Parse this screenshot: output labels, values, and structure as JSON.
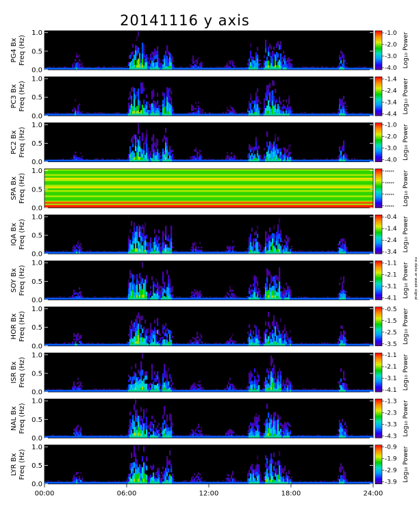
{
  "page": {
    "title": "20141116 y axis",
    "side_note": "no data or weak signal"
  },
  "chart_data": {
    "type": "heatmap",
    "title": "20141116 y axis",
    "x_tick_labels": [
      "00:00",
      "06:00",
      "12:00",
      "18:00",
      "24:00"
    ],
    "x_ticks_hours": [
      0,
      6,
      12,
      18,
      24
    ],
    "xlim_hours": [
      0,
      24
    ],
    "ylim_hz": [
      0,
      1.05
    ],
    "y_tick_labels": [
      "0.0",
      "0.5",
      "1.0"
    ],
    "y_ticks_hz": [
      0,
      0.5,
      1.0
    ],
    "colorbar_label": "Log₁₀ Power",
    "panels": [
      {
        "station": "PG4",
        "component": "Bx",
        "freq_label": "Freq (Hz)",
        "colorbar_ticks": [
          "-1.0",
          "-2.0",
          "-3.0",
          "-4.0"
        ],
        "clim": [
          -4.0,
          -1.0
        ],
        "status": "data"
      },
      {
        "station": "PC3",
        "component": "Bx",
        "freq_label": "Freq (Hz)",
        "colorbar_ticks": [
          "-1.4",
          "-2.4",
          "-3.4",
          "-4.4"
        ],
        "clim": [
          -4.4,
          -1.4
        ],
        "status": "data"
      },
      {
        "station": "PC2",
        "component": "Bx",
        "freq_label": "Freq (Hz)",
        "colorbar_ticks": [
          "-1.0",
          "-2.0",
          "-3.0",
          "-4.0"
        ],
        "clim": [
          -4.0,
          -1.0
        ],
        "status": "data"
      },
      {
        "station": "SPA",
        "component": "Bx",
        "freq_label": "Freq (Hz)",
        "colorbar_ticks": [
          "*****",
          "*****",
          "*****",
          "*****"
        ],
        "clim": null,
        "status": "no-data"
      },
      {
        "station": "IQA",
        "component": "Bx",
        "freq_label": "Freq (Hz)",
        "colorbar_ticks": [
          "-0.4",
          "-1.4",
          "-2.4",
          "-3.4"
        ],
        "clim": [
          -3.4,
          -0.4
        ],
        "status": "data"
      },
      {
        "station": "SOY",
        "component": "Bx",
        "freq_label": "Freq (Hz)",
        "colorbar_ticks": [
          "-1.1",
          "-2.1",
          "-3.1",
          "-4.1"
        ],
        "clim": [
          -4.1,
          -1.1
        ],
        "status": "data"
      },
      {
        "station": "HOR",
        "component": "Bx",
        "freq_label": "Freq (Hz)",
        "colorbar_ticks": [
          "-0.5",
          "-1.5",
          "-2.5",
          "-3.5"
        ],
        "clim": [
          -3.5,
          -0.5
        ],
        "status": "data"
      },
      {
        "station": "ISR",
        "component": "Bx",
        "freq_label": "Freq (Hz)",
        "colorbar_ticks": [
          "-1.1",
          "-2.1",
          "-3.1",
          "-4.1"
        ],
        "clim": [
          -4.1,
          -1.1
        ],
        "status": "data"
      },
      {
        "station": "NAL",
        "component": "Bx",
        "freq_label": "Freq (Hz)",
        "colorbar_ticks": [
          "-1.3",
          "-2.3",
          "-3.3",
          "-4.3"
        ],
        "clim": [
          -4.3,
          -1.3
        ],
        "status": "data"
      },
      {
        "station": "LYR",
        "component": "Bx",
        "freq_label": "Freq (Hz)",
        "colorbar_ticks": [
          "-0.9",
          "-1.9",
          "-2.9",
          "-3.9"
        ],
        "clim": [
          -3.9,
          -0.9
        ],
        "status": "data"
      }
    ],
    "activity_bursts_hours": [
      [
        6.3,
        7.4,
        0.85
      ],
      [
        7.8,
        8.3,
        0.6
      ],
      [
        8.7,
        9.2,
        0.7
      ],
      [
        2.2,
        2.6,
        0.35
      ],
      [
        15.0,
        15.6,
        0.6
      ],
      [
        16.2,
        17.2,
        0.75
      ],
      [
        17.4,
        17.9,
        0.45
      ],
      [
        21.6,
        21.9,
        0.55
      ],
      [
        10.8,
        11.4,
        0.3
      ],
      [
        13.4,
        13.8,
        0.3
      ]
    ]
  }
}
